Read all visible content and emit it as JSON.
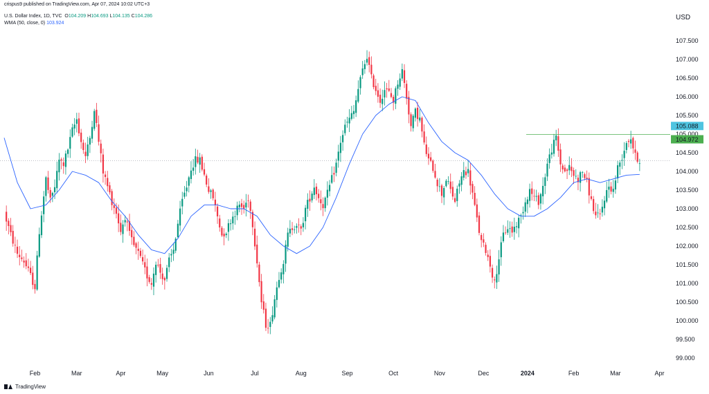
{
  "header": {
    "publish_line": "crispus9 published on TradingView.com, Apr 07, 2024 10:02 UTC+3",
    "symbol": "U.S. Dollar Index, 1D, TVC",
    "ohlc": [
      {
        "label": "O",
        "value": "104.209"
      },
      {
        "label": "H",
        "value": "104.693"
      },
      {
        "label": "L",
        "value": "104.135"
      },
      {
        "label": "C",
        "value": "104.286"
      }
    ],
    "indicator_label": "WMA (50, close, 0)",
    "indicator_value": "103.924"
  },
  "currency": "USD",
  "footer": {
    "brand": "TradingView"
  },
  "colors": {
    "up": "#089981",
    "down": "#f23645",
    "wma": "#2962ff",
    "resistance": "#4caf50",
    "label_blue": "#4fc4e0",
    "label_green": "#4caf50",
    "dotted": "#9598a1"
  },
  "chart_data": {
    "type": "candlestick",
    "title": "",
    "ylim": [
      99.0,
      107.5
    ],
    "y_ticks": [
      "107.500",
      "107.000",
      "106.500",
      "106.000",
      "105.500",
      "105.000",
      "104.500",
      "104.000",
      "103.500",
      "103.000",
      "102.500",
      "102.000",
      "101.500",
      "101.000",
      "100.500",
      "100.000",
      "99.500",
      "99.000"
    ],
    "x_labels": [
      "Feb",
      "Mar",
      "Apr",
      "May",
      "Jun",
      "Jul",
      "Aug",
      "Sep",
      "Oct",
      "Nov",
      "Dec",
      "2024",
      "Feb",
      "Mar",
      "Apr"
    ],
    "price_labels": [
      {
        "value": "105.088",
        "level": 105.088,
        "style": "blue"
      },
      {
        "value": "104.972",
        "level": 104.972,
        "style": "green"
      }
    ],
    "resistance_level": 104.972,
    "current_level": 104.286,
    "anchors": [
      [
        0,
        102.9
      ],
      [
        3,
        102.3
      ],
      [
        6,
        101.8
      ],
      [
        9,
        101.6
      ],
      [
        12,
        101.2
      ],
      [
        14,
        100.9
      ],
      [
        16,
        102.4
      ],
      [
        19,
        103.8
      ],
      [
        21,
        103.2
      ],
      [
        23,
        103.6
      ],
      [
        25,
        104.3
      ],
      [
        27,
        104.2
      ],
      [
        29,
        104.6
      ],
      [
        31,
        105.1
      ],
      [
        33,
        105.4
      ],
      [
        35,
        104.8
      ],
      [
        37,
        104.4
      ],
      [
        39,
        104.9
      ],
      [
        41,
        105.7
      ],
      [
        43,
        104.8
      ],
      [
        45,
        104.0
      ],
      [
        47,
        103.6
      ],
      [
        49,
        103.2
      ],
      [
        51,
        102.9
      ],
      [
        53,
        102.4
      ],
      [
        55,
        102.8
      ],
      [
        57,
        102.3
      ],
      [
        59,
        102.0
      ],
      [
        61,
        101.8
      ],
      [
        63,
        101.5
      ],
      [
        65,
        101.2
      ],
      [
        67,
        101.0
      ],
      [
        69,
        101.6
      ],
      [
        71,
        101.3
      ],
      [
        73,
        101.1
      ],
      [
        75,
        101.6
      ],
      [
        77,
        101.9
      ],
      [
        79,
        102.6
      ],
      [
        81,
        103.2
      ],
      [
        83,
        103.6
      ],
      [
        85,
        104.1
      ],
      [
        87,
        104.3
      ],
      [
        89,
        104.3
      ],
      [
        91,
        103.9
      ],
      [
        93,
        103.5
      ],
      [
        95,
        103.3
      ],
      [
        97,
        102.8
      ],
      [
        99,
        102.3
      ],
      [
        101,
        102.4
      ],
      [
        103,
        102.7
      ],
      [
        105,
        102.9
      ],
      [
        107,
        103.1
      ],
      [
        109,
        103.0
      ],
      [
        111,
        103.3
      ],
      [
        113,
        102.6
      ],
      [
        115,
        101.6
      ],
      [
        117,
        100.5
      ],
      [
        119,
        99.9
      ],
      [
        121,
        99.9
      ],
      [
        123,
        100.6
      ],
      [
        125,
        101.2
      ],
      [
        127,
        101.6
      ],
      [
        129,
        102.3
      ],
      [
        131,
        102.5
      ],
      [
        133,
        102.6
      ],
      [
        135,
        102.4
      ],
      [
        137,
        103.0
      ],
      [
        139,
        103.3
      ],
      [
        141,
        103.6
      ],
      [
        143,
        103.3
      ],
      [
        145,
        103.1
      ],
      [
        147,
        103.4
      ],
      [
        149,
        103.8
      ],
      [
        151,
        104.2
      ],
      [
        153,
        104.8
      ],
      [
        155,
        105.2
      ],
      [
        157,
        105.4
      ],
      [
        159,
        105.6
      ],
      [
        161,
        106.2
      ],
      [
        163,
        106.7
      ],
      [
        165,
        107.1
      ],
      [
        167,
        106.5
      ],
      [
        169,
        106.2
      ],
      [
        171,
        105.9
      ],
      [
        173,
        106.2
      ],
      [
        175,
        106.1
      ],
      [
        177,
        105.9
      ],
      [
        179,
        106.4
      ],
      [
        181,
        106.7
      ],
      [
        183,
        106.0
      ],
      [
        185,
        105.2
      ],
      [
        187,
        105.6
      ],
      [
        189,
        105.4
      ],
      [
        191,
        104.7
      ],
      [
        193,
        104.3
      ],
      [
        195,
        104.1
      ],
      [
        197,
        103.7
      ],
      [
        199,
        103.4
      ],
      [
        201,
        103.8
      ],
      [
        203,
        103.5
      ],
      [
        205,
        103.2
      ],
      [
        207,
        103.7
      ],
      [
        209,
        104.0
      ],
      [
        211,
        104.0
      ],
      [
        213,
        103.4
      ],
      [
        215,
        102.7
      ],
      [
        217,
        102.1
      ],
      [
        219,
        101.9
      ],
      [
        221,
        101.5
      ],
      [
        223,
        101.0
      ],
      [
        225,
        101.7
      ],
      [
        227,
        102.3
      ],
      [
        229,
        102.5
      ],
      [
        231,
        102.4
      ],
      [
        233,
        102.6
      ],
      [
        235,
        102.8
      ],
      [
        237,
        103.2
      ],
      [
        239,
        103.5
      ],
      [
        241,
        103.3
      ],
      [
        243,
        103.2
      ],
      [
        245,
        103.6
      ],
      [
        247,
        104.2
      ],
      [
        249,
        104.6
      ],
      [
        251,
        104.9
      ],
      [
        253,
        104.2
      ],
      [
        255,
        104.0
      ],
      [
        257,
        104.1
      ],
      [
        259,
        103.9
      ],
      [
        261,
        103.8
      ],
      [
        263,
        104.0
      ],
      [
        265,
        103.7
      ],
      [
        267,
        103.2
      ],
      [
        269,
        102.8
      ],
      [
        271,
        102.8
      ],
      [
        273,
        103.3
      ],
      [
        275,
        103.6
      ],
      [
        277,
        103.5
      ],
      [
        279,
        104.1
      ],
      [
        281,
        104.4
      ],
      [
        283,
        104.8
      ],
      [
        285,
        104.9
      ],
      [
        287,
        104.4
      ],
      [
        289,
        104.3
      ]
    ],
    "wma_anchors": [
      [
        0,
        104.9
      ],
      [
        6,
        103.7
      ],
      [
        12,
        103.0
      ],
      [
        19,
        103.1
      ],
      [
        25,
        103.5
      ],
      [
        31,
        104.0
      ],
      [
        37,
        103.9
      ],
      [
        43,
        103.7
      ],
      [
        49,
        103.2
      ],
      [
        55,
        102.8
      ],
      [
        61,
        102.3
      ],
      [
        67,
        101.9
      ],
      [
        73,
        101.8
      ],
      [
        79,
        102.2
      ],
      [
        85,
        102.8
      ],
      [
        91,
        103.1
      ],
      [
        97,
        103.1
      ],
      [
        103,
        103.0
      ],
      [
        109,
        103.0
      ],
      [
        115,
        102.8
      ],
      [
        121,
        102.3
      ],
      [
        127,
        102.0
      ],
      [
        133,
        101.8
      ],
      [
        139,
        102.0
      ],
      [
        145,
        102.5
      ],
      [
        151,
        103.3
      ],
      [
        157,
        104.2
      ],
      [
        163,
        105.0
      ],
      [
        169,
        105.5
      ],
      [
        175,
        105.8
      ],
      [
        181,
        106.0
      ],
      [
        187,
        105.9
      ],
      [
        193,
        105.3
      ],
      [
        199,
        104.8
      ],
      [
        205,
        104.5
      ],
      [
        211,
        104.3
      ],
      [
        217,
        103.9
      ],
      [
        223,
        103.4
      ],
      [
        229,
        103.0
      ],
      [
        235,
        102.8
      ],
      [
        241,
        102.8
      ],
      [
        247,
        103.0
      ],
      [
        253,
        103.3
      ],
      [
        259,
        103.7
      ],
      [
        265,
        103.8
      ],
      [
        271,
        103.7
      ],
      [
        277,
        103.8
      ],
      [
        283,
        103.9
      ],
      [
        289,
        103.92
      ]
    ],
    "x_label_indices": [
      14,
      33,
      53,
      72,
      93,
      114,
      135,
      156,
      177,
      198,
      218,
      238,
      259,
      278,
      298
    ]
  }
}
